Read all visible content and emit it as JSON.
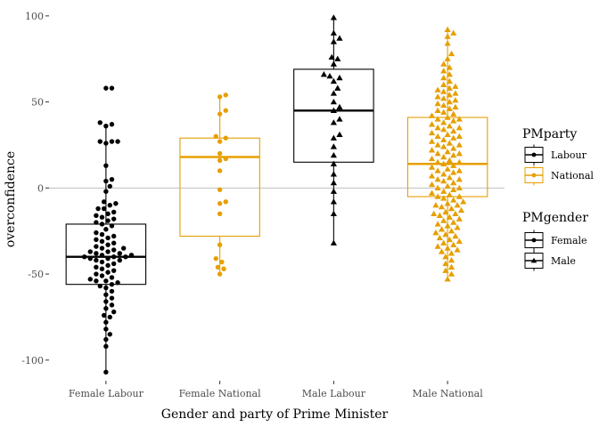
{
  "chart_data": {
    "type": "box",
    "xlabel": "Gender and party of Prime Minister",
    "ylabel": "overconfidence",
    "ylim": [
      -112,
      102
    ],
    "yticks": [
      -100,
      -50,
      0,
      50,
      100
    ],
    "reference_line": 0,
    "categories": [
      "Female Labour",
      "Female National",
      "Male Labour",
      "Male National"
    ],
    "colors": {
      "Labour": "#000000",
      "National": "#E69F00",
      "refline": "#bfbfbf"
    },
    "legend_party": {
      "title": "PMparty",
      "items": [
        "Labour",
        "National"
      ]
    },
    "legend_gender": {
      "title": "PMgender",
      "items": [
        "Female",
        "Male"
      ]
    },
    "boxes": [
      {
        "category": "Female Labour",
        "party": "Labour",
        "gender": "Female",
        "whisker_low": -107,
        "q1": -56,
        "median": -40,
        "q3": -21,
        "whisker_high": 37
      },
      {
        "category": "Female National",
        "party": "National",
        "gender": "Female",
        "whisker_low": -50,
        "q1": -28,
        "median": 18,
        "q3": 29,
        "whisker_high": 54
      },
      {
        "category": "Male Labour",
        "party": "Labour",
        "gender": "Male",
        "whisker_low": -32,
        "q1": 15,
        "median": 45,
        "q3": 69,
        "whisker_high": 99
      },
      {
        "category": "Male National",
        "party": "National",
        "gender": "Male",
        "whisker_low": -53,
        "q1": -5,
        "median": 14,
        "q3": 41,
        "whisker_high": 92
      }
    ],
    "points": [
      {
        "category": "Female Labour",
        "values": [
          58,
          58,
          38,
          37,
          36,
          27,
          27,
          27,
          26,
          13,
          5,
          4,
          1,
          -2,
          -8,
          -9,
          -10,
          -12,
          -12,
          -14,
          -15,
          -16,
          -17,
          -18,
          -19,
          -20,
          -21,
          -22,
          -24,
          -26,
          -27,
          -28,
          -29,
          -30,
          -31,
          -32,
          -33,
          -34,
          -35,
          -35,
          -36,
          -37,
          -37,
          -38,
          -38,
          -39,
          -39,
          -40,
          -40,
          -40,
          -41,
          -41,
          -42,
          -42,
          -43,
          -44,
          -45,
          -46,
          -47,
          -48,
          -49,
          -50,
          -51,
          -52,
          -53,
          -54,
          -54,
          -55,
          -56,
          -57,
          -58,
          -60,
          -62,
          -64,
          -66,
          -68,
          -70,
          -72,
          -74,
          -75,
          -78,
          -82,
          -85,
          -88,
          -92,
          -107
        ]
      },
      {
        "category": "Female National",
        "values": [
          54,
          53,
          45,
          43,
          30,
          29,
          27,
          20,
          17,
          16,
          10,
          -1,
          -8,
          -9,
          -15,
          -33,
          -41,
          -43,
          -46,
          -47,
          -50
        ]
      },
      {
        "category": "Male Labour",
        "values": [
          99,
          90,
          87,
          85,
          76,
          75,
          72,
          66,
          65,
          64,
          62,
          58,
          55,
          50,
          47,
          45,
          40,
          38,
          31,
          29,
          24,
          19,
          14,
          8,
          3,
          -2,
          -8,
          -15,
          -32
        ]
      },
      {
        "category": "Male National",
        "values": [
          92,
          90,
          88,
          84,
          78,
          75,
          72,
          70,
          68,
          66,
          64,
          62,
          60,
          59,
          58,
          57,
          56,
          55,
          54,
          53,
          52,
          51,
          50,
          49,
          48,
          47,
          46,
          45,
          44,
          43,
          42,
          41,
          40,
          40,
          39,
          38,
          37,
          36,
          35,
          35,
          34,
          33,
          32,
          31,
          30,
          30,
          29,
          28,
          27,
          26,
          25,
          25,
          24,
          23,
          22,
          21,
          20,
          20,
          19,
          18,
          17,
          16,
          15,
          15,
          14,
          13,
          12,
          11,
          10,
          10,
          9,
          8,
          7,
          6,
          5,
          5,
          4,
          3,
          2,
          1,
          0,
          0,
          -1,
          -2,
          -3,
          -4,
          -5,
          -5,
          -6,
          -7,
          -8,
          -9,
          -10,
          -10,
          -11,
          -12,
          -13,
          -14,
          -15,
          -15,
          -16,
          -17,
          -18,
          -19,
          -20,
          -21,
          -22,
          -23,
          -24,
          -25,
          -26,
          -27,
          -28,
          -29,
          -30,
          -31,
          -32,
          -33,
          -34,
          -35,
          -36,
          -37,
          -38,
          -40,
          -42,
          -44,
          -46,
          -48,
          -50,
          -53
        ]
      }
    ]
  }
}
